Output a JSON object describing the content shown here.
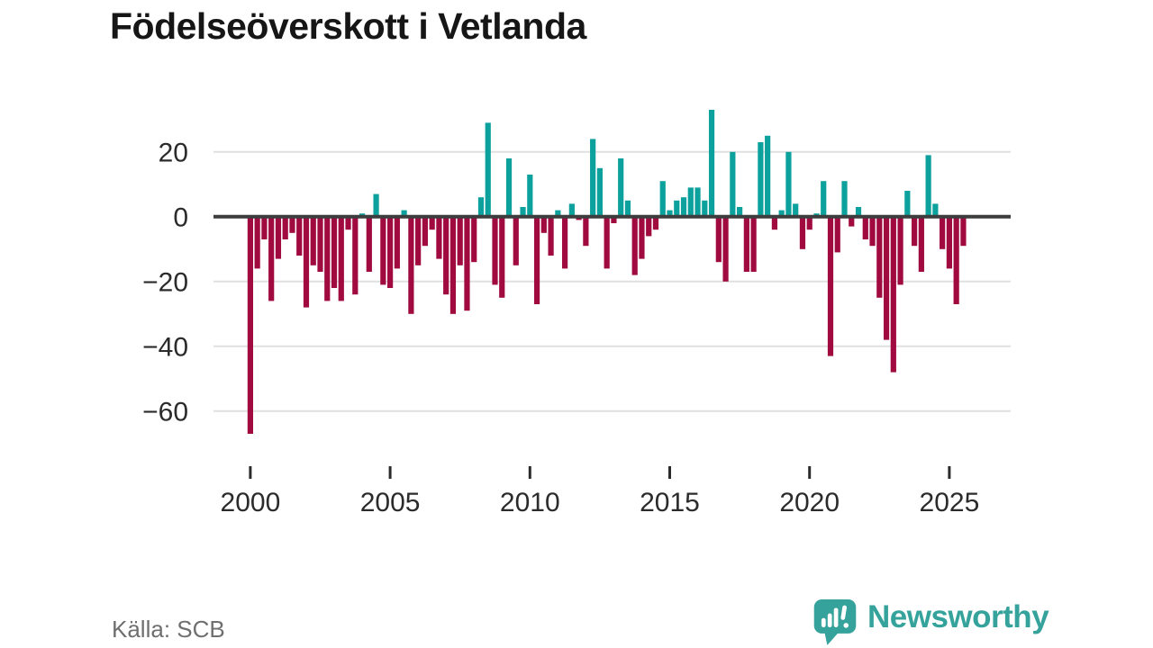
{
  "title": "Födelseöverskott i Vetlanda",
  "source": "Källa: SCB",
  "logo": {
    "text": "Newsworthy"
  },
  "colors": {
    "positive": "#0ca19c",
    "negative": "#a00a3f",
    "axis": "#3d3d3d",
    "grid": "#e0e0e0",
    "tick_label": "#2b2b2b",
    "title": "#161616",
    "source": "#6f6f6f",
    "logo": "#35a39b"
  },
  "chart_data": {
    "type": "bar",
    "title": "Födelseöverskott i Vetlanda",
    "x_start": "2000 Q1",
    "x_interval": "quarter",
    "x_tick_labels": [
      "2000",
      "2005",
      "2010",
      "2015",
      "2020",
      "2025"
    ],
    "y_ticks": [
      20,
      0,
      -20,
      -40,
      -60
    ],
    "y_tick_labels": [
      "20",
      "0",
      "−20",
      "−40",
      "−60"
    ],
    "ylim": [
      -70,
      35
    ],
    "grid": true,
    "legend": false,
    "values": [
      -67,
      -16,
      -7,
      -26,
      -13,
      -7,
      -5,
      -12,
      -28,
      -15,
      -17,
      -26,
      -22,
      -26,
      -4,
      -24,
      1,
      -17,
      7,
      -21,
      -22,
      -16,
      2,
      -30,
      -15,
      -9,
      -4,
      -13,
      -24,
      -30,
      -15,
      -29,
      -14,
      6,
      29,
      -21,
      -25,
      18,
      -15,
      3,
      13,
      -27,
      -5,
      -12,
      2,
      -16,
      4,
      -1,
      -9,
      24,
      15,
      -16,
      -2,
      18,
      5,
      -18,
      -13,
      -6,
      -4,
      11,
      2,
      5,
      6,
      9,
      9,
      5,
      33,
      -14,
      -20,
      20,
      3,
      -17,
      -17,
      23,
      25,
      -4,
      2,
      20,
      4,
      -10,
      -4,
      1,
      11,
      -43,
      -11,
      11,
      -3,
      3,
      -7,
      -9,
      -25,
      -38,
      -48,
      -21,
      8,
      -9,
      -17,
      19,
      4,
      -10,
      -16,
      -27,
      -9
    ]
  }
}
